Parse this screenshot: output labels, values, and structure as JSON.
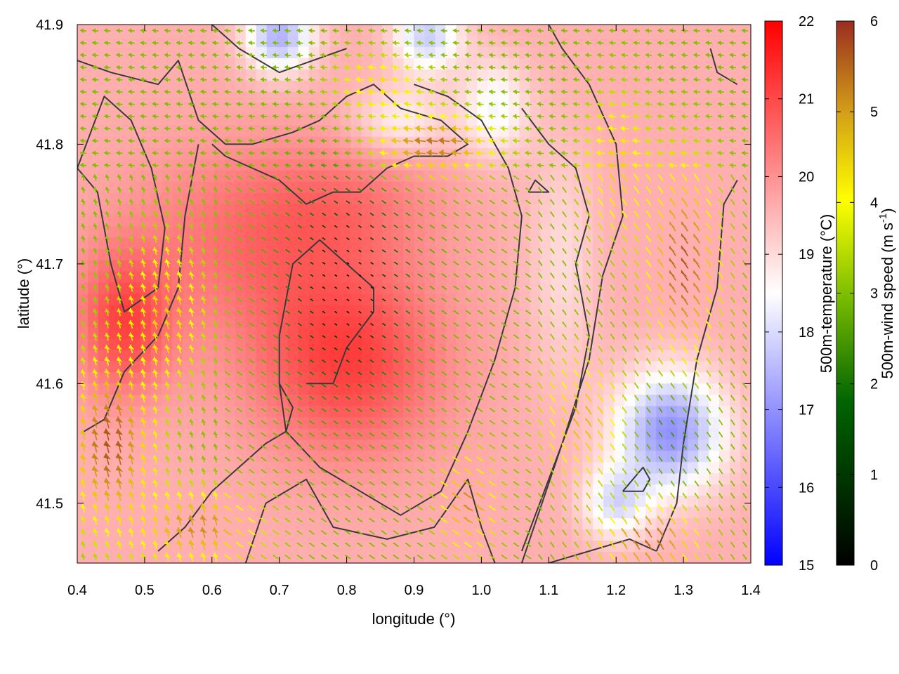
{
  "chart_data": {
    "type": "heatmap",
    "xlabel": "longitude (°)",
    "ylabel": "latitude (°)",
    "xlim": [
      0.4,
      1.4
    ],
    "ylim": [
      41.45,
      41.9
    ],
    "x_ticks": [
      "0.4",
      "0.5",
      "0.6",
      "0.7",
      "0.8",
      "0.9",
      "1.0",
      "1.1",
      "1.2",
      "1.3",
      "1.4"
    ],
    "y_ticks": [
      "41.5",
      "41.6",
      "41.7",
      "41.8",
      "41.9"
    ],
    "x_tick_values": [
      0.4,
      0.5,
      0.6,
      0.7,
      0.8,
      0.9,
      1.0,
      1.1,
      1.2,
      1.3,
      1.4
    ],
    "y_tick_values": [
      41.5,
      41.6,
      41.7,
      41.8,
      41.9
    ],
    "temperature_colorbar": {
      "label": "500m-temperature (°C)",
      "range": [
        15,
        22
      ],
      "ticks": [
        "15",
        "16",
        "17",
        "18",
        "19",
        "20",
        "21",
        "22"
      ],
      "tick_values": [
        15,
        16,
        17,
        18,
        19,
        20,
        21,
        22
      ],
      "colors": [
        "#0000ff",
        "#ffffff",
        "#ff0000"
      ]
    },
    "wind_colorbar": {
      "label": "500m-wind speed (m s",
      "label_superscript": "-1",
      "label_suffix": ")",
      "range": [
        0,
        6
      ],
      "ticks": [
        "0",
        "1",
        "2",
        "3",
        "4",
        "5",
        "6"
      ],
      "tick_values": [
        0,
        1,
        2,
        3,
        4,
        5,
        6
      ],
      "colors": [
        "#000000",
        "#006400",
        "#7fbf00",
        "#ffff00",
        "#d4a017",
        "#9b2d20"
      ]
    },
    "temperature_field": {
      "background_c": 19.6,
      "anomalies": [
        {
          "lon": 0.8,
          "lat": 41.62,
          "delta_c": 1.5,
          "spread_lon": 0.14,
          "spread_lat": 0.08
        },
        {
          "lon": 0.47,
          "lat": 41.65,
          "delta_c": 1.4,
          "spread_lon": 0.07,
          "spread_lat": 0.06
        },
        {
          "lon": 0.65,
          "lat": 41.72,
          "delta_c": 0.8,
          "spread_lon": 0.18,
          "spread_lat": 0.08
        },
        {
          "lon": 0.8,
          "lat": 41.75,
          "delta_c": 0.6,
          "spread_lon": 0.14,
          "spread_lat": 0.05
        },
        {
          "lon": 1.28,
          "lat": 41.56,
          "delta_c": -2.6,
          "spread_lon": 0.08,
          "spread_lat": 0.05
        },
        {
          "lon": 1.2,
          "lat": 41.5,
          "delta_c": -1.5,
          "spread_lon": 0.05,
          "spread_lat": 0.03
        },
        {
          "lon": 0.7,
          "lat": 41.89,
          "delta_c": -2.2,
          "spread_lon": 0.05,
          "spread_lat": 0.03
        },
        {
          "lon": 0.92,
          "lat": 41.89,
          "delta_c": -1.8,
          "spread_lon": 0.05,
          "spread_lat": 0.03
        },
        {
          "lon": 1.02,
          "lat": 41.83,
          "delta_c": -1.2,
          "spread_lon": 0.05,
          "spread_lat": 0.04
        },
        {
          "lon": 0.88,
          "lat": 41.82,
          "delta_c": -0.9,
          "spread_lon": 0.07,
          "spread_lat": 0.03
        },
        {
          "lon": 1.12,
          "lat": 41.7,
          "delta_c": -0.6,
          "spread_lon": 0.05,
          "spread_lat": 0.1
        }
      ]
    },
    "wind_field": {
      "speed_zones": [
        {
          "lon": 0.8,
          "lat": 41.68,
          "speed": 0.2,
          "spread_lon": 0.09,
          "spread_lat": 0.09
        },
        {
          "lon": 0.93,
          "lat": 41.8,
          "speed": 5.3,
          "spread_lon": 0.09,
          "spread_lat": 0.025
        },
        {
          "lon": 0.45,
          "lat": 41.55,
          "speed": 5.6,
          "spread_lon": 0.06,
          "spread_lat": 0.07
        },
        {
          "lon": 0.58,
          "lat": 41.48,
          "speed": 5.0,
          "spread_lon": 0.09,
          "spread_lat": 0.03
        },
        {
          "lon": 0.53,
          "lat": 41.66,
          "speed": 4.3,
          "spread_lon": 0.06,
          "spread_lat": 0.06
        },
        {
          "lon": 1.3,
          "lat": 41.7,
          "speed": 5.6,
          "spread_lon": 0.05,
          "spread_lat": 0.08
        },
        {
          "lon": 1.25,
          "lat": 41.47,
          "speed": 5.4,
          "spread_lon": 0.07,
          "spread_lat": 0.03
        },
        {
          "lon": 1.15,
          "lat": 41.57,
          "speed": 4.5,
          "spread_lon": 0.06,
          "spread_lat": 0.05
        },
        {
          "lon": 0.98,
          "lat": 41.5,
          "speed": 5.0,
          "spread_lon": 0.04,
          "spread_lat": 0.04
        },
        {
          "lon": 1.2,
          "lat": 41.78,
          "speed": 4.2,
          "spread_lon": 0.05,
          "spread_lat": 0.06
        },
        {
          "lon": 0.85,
          "lat": 41.85,
          "speed": 4.0,
          "spread_lon": 0.07,
          "spread_lat": 0.025
        },
        {
          "lon": 1.28,
          "lat": 41.56,
          "speed": 1.8,
          "spread_lon": 0.04,
          "spread_lat": 0.04
        }
      ],
      "background_speed": 2.4,
      "direction_notes": [
        "easterly flow in north",
        "northward flow in south-west",
        "north-westward flow in south-east"
      ]
    }
  }
}
